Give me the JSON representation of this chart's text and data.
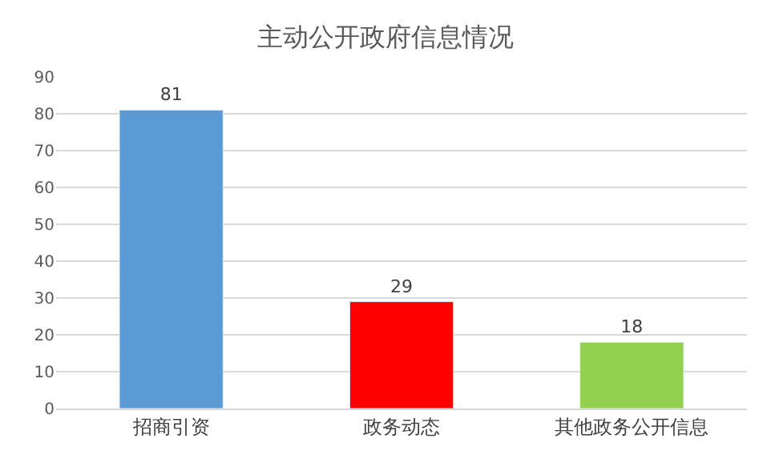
{
  "chart_data": {
    "type": "bar",
    "title": "主动公开政府信息情况",
    "categories": [
      "招商引资",
      "政务动态",
      "其他政务公开信息"
    ],
    "values": [
      81,
      29,
      18
    ],
    "colors": [
      "#5b9bd5",
      "#ff0000",
      "#92d050"
    ],
    "ylim": [
      0,
      90
    ],
    "yticks": [
      0,
      10,
      20,
      30,
      40,
      50,
      60,
      70,
      80,
      90
    ],
    "grid": "y",
    "data_labels": true,
    "legend": false
  }
}
